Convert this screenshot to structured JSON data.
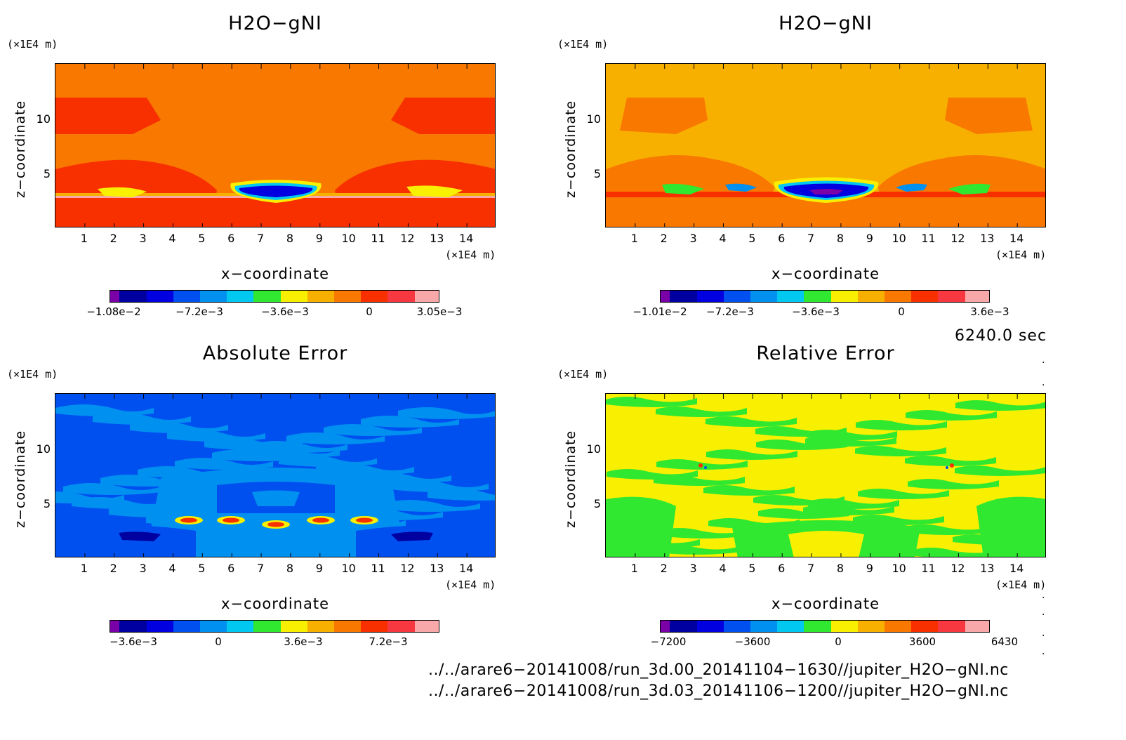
{
  "panels": [
    {
      "title": "H2O−gNI",
      "unit_y": "(×1E4 m)",
      "unit_x": "(×1E4 m)",
      "xlabel": "x−coordinate",
      "zlabel": "z−coordinate",
      "xticks": [
        "1",
        "2",
        "3",
        "4",
        "5",
        "6",
        "7",
        "8",
        "9",
        "10",
        "11",
        "12",
        "13",
        "14"
      ],
      "yticks": [
        "10",
        "5"
      ],
      "colorbar_colors": [
        "#7a00a8",
        "#0000a0",
        "#0000e0",
        "#0050f0",
        "#0090f0",
        "#00c8f0",
        "#30e830",
        "#f8f000",
        "#f8b000",
        "#f87800",
        "#f83000",
        "#f83840",
        "#f8a8a8"
      ],
      "colorbar_ticks": [
        "−1.08e−2",
        "−7.2e−3",
        "−3.6e−3",
        "0",
        "3.05e−3"
      ]
    },
    {
      "title": "H2O−gNI",
      "unit_y": "(×1E4 m)",
      "unit_x": "(×1E4 m)",
      "xlabel": "x−coordinate",
      "zlabel": "z−coordinate",
      "xticks": [
        "1",
        "2",
        "3",
        "4",
        "5",
        "6",
        "7",
        "8",
        "9",
        "10",
        "11",
        "12",
        "13",
        "14"
      ],
      "yticks": [
        "10",
        "5"
      ],
      "colorbar_colors": [
        "#7a00a8",
        "#0000a0",
        "#0000e0",
        "#0050f0",
        "#0090f0",
        "#00c8f0",
        "#30e830",
        "#f8f000",
        "#f8b000",
        "#f87800",
        "#f83000",
        "#f83840",
        "#f8a8a8"
      ],
      "colorbar_ticks": [
        "−1.01e−2",
        "−7.2e−3",
        "−3.6e−3",
        "0",
        "3.6e−3"
      ]
    },
    {
      "title": "Absolute Error",
      "unit_y": "(×1E4 m)",
      "unit_x": "(×1E4 m)",
      "xlabel": "x−coordinate",
      "zlabel": "z−coordinate",
      "xticks": [
        "1",
        "2",
        "3",
        "4",
        "5",
        "6",
        "7",
        "8",
        "9",
        "10",
        "11",
        "12",
        "13",
        "14"
      ],
      "yticks": [
        "10",
        "5"
      ],
      "colorbar_colors": [
        "#7a00a8",
        "#0000a0",
        "#0000e0",
        "#0050f0",
        "#0090f0",
        "#00c8f0",
        "#30e830",
        "#f8f000",
        "#f8b000",
        "#f87800",
        "#f83000",
        "#f83840",
        "#f8a8a8"
      ],
      "colorbar_ticks": [
        "−3.6e−3",
        "0",
        "3.6e−3",
        "7.2e−3"
      ]
    },
    {
      "title": "Relative Error",
      "unit_y": "(×1E4 m)",
      "unit_x": "(×1E4 m)",
      "xlabel": "x−coordinate",
      "zlabel": "z−coordinate",
      "xticks": [
        "1",
        "2",
        "3",
        "4",
        "5",
        "6",
        "7",
        "8",
        "9",
        "10",
        "11",
        "12",
        "13",
        "14"
      ],
      "yticks": [
        "10",
        "5"
      ],
      "colorbar_colors": [
        "#7a00a8",
        "#0000a0",
        "#0000e0",
        "#0050f0",
        "#0090f0",
        "#00c8f0",
        "#30e830",
        "#f8f000",
        "#f8b000",
        "#f87800",
        "#f83000",
        "#f83840",
        "#f8a8a8"
      ],
      "colorbar_ticks": [
        "−7200",
        "−3600",
        "0",
        "3600",
        "6430"
      ]
    }
  ],
  "time_label": "6240.0 sec",
  "paths": [
    "../../arare6−20141008/run_3d.00_20141104−1630//jupiter_H2O−gNI.nc",
    "../../arare6−20141008/run_3d.03_20141106−1200//jupiter_H2O−gNI.nc"
  ],
  "chart_data": [
    {
      "type": "heatmap",
      "title": "H2O−gNI",
      "xlabel": "x−coordinate",
      "ylabel": "z−coordinate",
      "xunit": "(×1E4 m)",
      "yunit": "(×1E4 m)",
      "xlim": [
        0,
        15
      ],
      "ylim": [
        0,
        15
      ],
      "colorbar_range": [
        -0.0108,
        0.00305
      ],
      "dominant_colors": [
        "#f87800",
        "#f83000"
      ]
    },
    {
      "type": "heatmap",
      "title": "H2O−gNI",
      "xlabel": "x−coordinate",
      "ylabel": "z−coordinate",
      "xunit": "(×1E4 m)",
      "yunit": "(×1E4 m)",
      "xlim": [
        0,
        15
      ],
      "ylim": [
        0,
        15
      ],
      "colorbar_range": [
        -0.0101,
        0.0036
      ],
      "dominant_colors": [
        "#f8b000",
        "#f87800"
      ]
    },
    {
      "type": "heatmap",
      "title": "Absolute Error",
      "xlabel": "x−coordinate",
      "ylabel": "z−coordinate",
      "xunit": "(×1E4 m)",
      "yunit": "(×1E4 m)",
      "xlim": [
        0,
        15
      ],
      "ylim": [
        0,
        15
      ],
      "colorbar_range": [
        -0.0036,
        0.0072
      ],
      "dominant_colors": [
        "#0050f0",
        "#0090f0"
      ]
    },
    {
      "type": "heatmap",
      "title": "Relative Error",
      "xlabel": "x−coordinate",
      "ylabel": "z−coordinate",
      "xunit": "(×1E4 m)",
      "yunit": "(×1E4 m)",
      "xlim": [
        0,
        15
      ],
      "ylim": [
        0,
        15
      ],
      "colorbar_range": [
        -7200,
        6430
      ],
      "dominant_colors": [
        "#f8f000",
        "#30e830"
      ]
    }
  ]
}
